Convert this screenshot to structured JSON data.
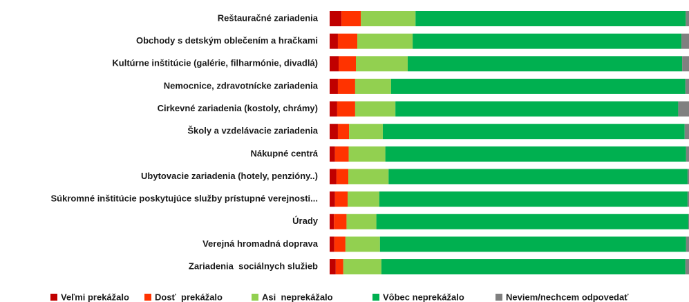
{
  "chart_data": {
    "type": "stacked-bar-horizontal",
    "categories": [
      "Reštauračné zariadenia",
      "Obchody s detským oblečením a hračkami",
      "Kultúrne inštitúcie (galérie, filharmónie, divadlá)",
      "Nemocnice, zdravotnícke zariadenia",
      "Cirkevné zariadenia (kostoly, chrámy)",
      "Školy a vzdelávacie zariadenia",
      "Nákupné centrá",
      "Ubytovacie zariadenia (hotely, penzióny..)",
      "Súkromné inštitúcie poskytujúce služby prístupné verejnosti...",
      "Úrady",
      "Verejná hromadná doprava",
      "Zariadenia  sociálnych služieb"
    ],
    "series": [
      {
        "name": "Veľmi prekážalo",
        "color": "#c00000",
        "values": [
          3.3,
          2.3,
          2.5,
          2.3,
          2.1,
          2.3,
          1.5,
          1.9,
          1.5,
          1.2,
          1.3,
          1.7
        ]
      },
      {
        "name": "Dosť  prekážalo",
        "color": "#ff3300",
        "values": [
          5.4,
          5.4,
          4.8,
          4.8,
          5.0,
          3.1,
          3.8,
          3.3,
          3.5,
          3.5,
          3.1,
          2.1
        ]
      },
      {
        "name": "Asi  neprekážalo",
        "color": "#92d050",
        "values": [
          15.2,
          15.4,
          14.4,
          10.0,
          11.2,
          9.4,
          10.2,
          11.2,
          8.8,
          8.3,
          9.6,
          10.6
        ]
      },
      {
        "name": "Vôbec neprekážalo",
        "color": "#00b050",
        "values": [
          75.2,
          74.8,
          76.3,
          81.9,
          78.7,
          84.0,
          83.7,
          83.2,
          85.8,
          86.8,
          85.2,
          84.6
        ]
      },
      {
        "name": "Neviem/nechcem odpovedať",
        "color": "#808080",
        "values": [
          0.9,
          2.1,
          1.9,
          1.0,
          3.0,
          1.2,
          0.8,
          0.4,
          0.4,
          0.2,
          0.8,
          1.0
        ]
      }
    ]
  }
}
